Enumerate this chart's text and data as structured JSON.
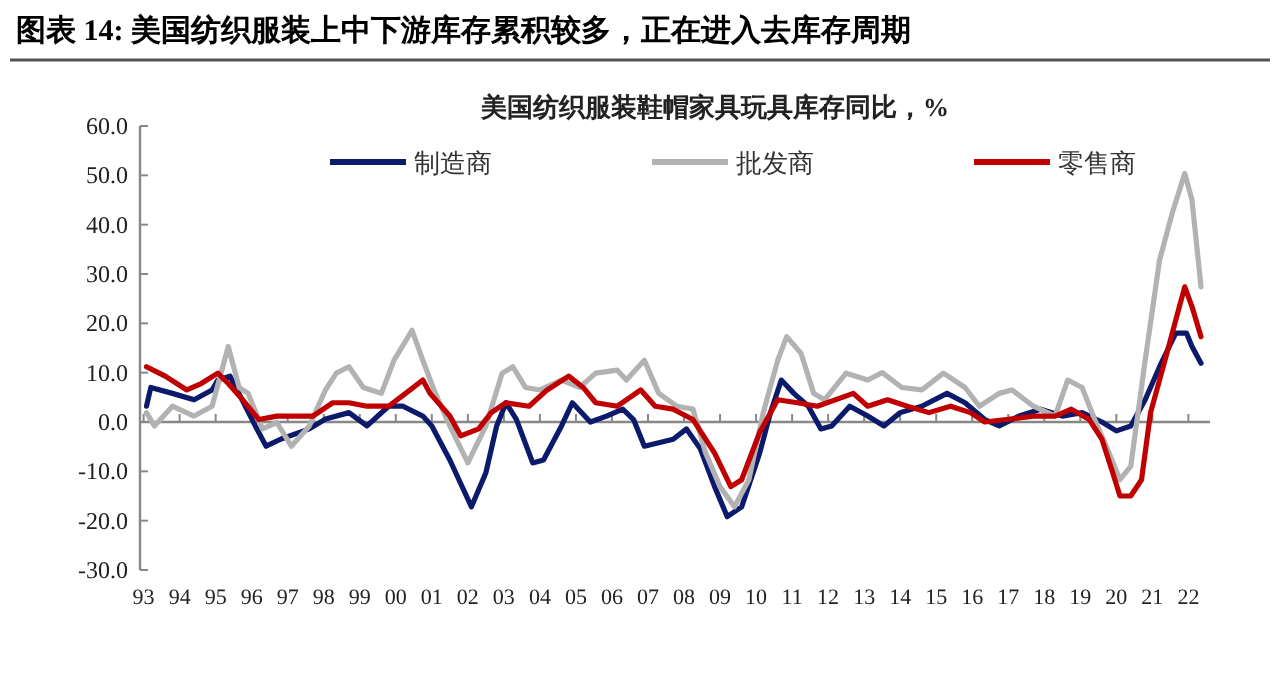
{
  "chart_data": {
    "type": "line",
    "title": "图表 14:  美国纺织服装上中下游库存累积较多，正在进入去库存周期",
    "subtitle": "美国纺织服装鞋帽家具玩具库存同比，%",
    "xlim": [
      1992.9,
      2022.6
    ],
    "ylim": [
      -30,
      60
    ],
    "xticks": [
      {
        "value": 1993,
        "label": "93"
      },
      {
        "value": 1994,
        "label": "94"
      },
      {
        "value": 1995,
        "label": "95"
      },
      {
        "value": 1996,
        "label": "96"
      },
      {
        "value": 1997,
        "label": "97"
      },
      {
        "value": 1998,
        "label": "98"
      },
      {
        "value": 1999,
        "label": "99"
      },
      {
        "value": 2000,
        "label": "00"
      },
      {
        "value": 2001,
        "label": "01"
      },
      {
        "value": 2002,
        "label": "02"
      },
      {
        "value": 2003,
        "label": "03"
      },
      {
        "value": 2004,
        "label": "04"
      },
      {
        "value": 2005,
        "label": "05"
      },
      {
        "value": 2006,
        "label": "06"
      },
      {
        "value": 2007,
        "label": "07"
      },
      {
        "value": 2008,
        "label": "08"
      },
      {
        "value": 2009,
        "label": "09"
      },
      {
        "value": 2010,
        "label": "10"
      },
      {
        "value": 2011,
        "label": "11"
      },
      {
        "value": 2012,
        "label": "12"
      },
      {
        "value": 2013,
        "label": "13"
      },
      {
        "value": 2014,
        "label": "14"
      },
      {
        "value": 2015,
        "label": "15"
      },
      {
        "value": 2016,
        "label": "16"
      },
      {
        "value": 2017,
        "label": "17"
      },
      {
        "value": 2018,
        "label": "18"
      },
      {
        "value": 2019,
        "label": "19"
      },
      {
        "value": 2020,
        "label": "20"
      },
      {
        "value": 2021,
        "label": "21"
      },
      {
        "value": 2022,
        "label": "22"
      }
    ],
    "yticks": [
      {
        "value": -30,
        "label": "-30.0"
      },
      {
        "value": -20,
        "label": "-20.0"
      },
      {
        "value": -10,
        "label": "-10.0"
      },
      {
        "value": 0,
        "label": "0.0"
      },
      {
        "value": 10,
        "label": "10.0"
      },
      {
        "value": 20,
        "label": "20.0"
      },
      {
        "value": 30,
        "label": "30.0"
      },
      {
        "value": 40,
        "label": "40.0"
      },
      {
        "value": 50,
        "label": "50.0"
      },
      {
        "value": 60,
        "label": "60.0"
      }
    ],
    "legend": "top",
    "marker": "none",
    "line_style": "solid",
    "series": [
      {
        "name": "制造商",
        "color": "#0c1a6b",
        "x": [
          1993.08,
          1993.2,
          1993.8,
          1994.4,
          1994.9,
          1995.06,
          1995.4,
          1996.1,
          1996.4,
          1996.8,
          1997.6,
          1998.05,
          1998.7,
          1999.2,
          1999.8,
          2000.2,
          2000.75,
          2001.0,
          2001.5,
          2002.1,
          2002.5,
          2002.8,
          2003.06,
          2003.35,
          2003.8,
          2004.1,
          2004.6,
          2004.9,
          2005.4,
          2005.85,
          2006.3,
          2006.6,
          2006.9,
          2007.3,
          2007.7,
          2008.07,
          2008.45,
          2008.85,
          2009.2,
          2009.6,
          2010.1,
          2010.4,
          2010.7,
          2011.05,
          2011.45,
          2011.8,
          2012.1,
          2012.6,
          2013.1,
          2013.55,
          2014.0,
          2014.6,
          2015.3,
          2015.8,
          2016.35,
          2016.75,
          2017.3,
          2017.9,
          2018.5,
          2019.05,
          2019.6,
          2020.0,
          2020.4,
          2020.8,
          2021.2,
          2021.65,
          2021.95,
          2022.1,
          2022.35
        ],
        "values": [
          3.2,
          7,
          5.8,
          4.5,
          6.5,
          8.5,
          9.3,
          -0.8,
          -4.9,
          -3.5,
          -1.4,
          0.6,
          1.9,
          -0.8,
          3.2,
          3.2,
          1.2,
          -0.8,
          -7.7,
          -17.2,
          -10.3,
          -0.8,
          3.9,
          0.5,
          -8.3,
          -7.7,
          -0.8,
          3.9,
          0,
          1.2,
          2.6,
          0.5,
          -4.9,
          -4.2,
          -3.5,
          -1.4,
          -5.4,
          -13.1,
          -19.2,
          -17.2,
          -6.3,
          1.9,
          8.5,
          5.8,
          3.2,
          -1.4,
          -0.8,
          3.2,
          1.2,
          -0.8,
          1.9,
          3.2,
          5.8,
          3.9,
          0.5,
          -0.8,
          1.2,
          2.6,
          1.2,
          1.9,
          0,
          -1.8,
          -0.8,
          4.5,
          11.2,
          18,
          18,
          15.3,
          11.9
        ]
      },
      {
        "name": "批发商",
        "color": "#b2b2b2",
        "x": [
          1993.08,
          1993.3,
          1993.8,
          1994.4,
          1994.9,
          1995.35,
          1995.65,
          1995.9,
          1996.3,
          1996.7,
          1997.1,
          1997.6,
          1998.05,
          1998.35,
          1998.7,
          1999.1,
          1999.6,
          1999.95,
          2000.45,
          2000.75,
          2001.1,
          2001.5,
          2002.0,
          2002.5,
          2002.95,
          2003.25,
          2003.6,
          2004.0,
          2004.6,
          2005.1,
          2005.55,
          2006.15,
          2006.4,
          2006.9,
          2007.3,
          2007.8,
          2008.25,
          2008.6,
          2009.0,
          2009.4,
          2009.8,
          2010.2,
          2010.6,
          2010.85,
          2011.25,
          2011.6,
          2011.9,
          2012.5,
          2013.1,
          2013.5,
          2014.05,
          2014.6,
          2015.2,
          2015.8,
          2016.2,
          2016.75,
          2017.1,
          2017.7,
          2018.3,
          2018.65,
          2019.05,
          2019.4,
          2019.8,
          2020.1,
          2020.4,
          2020.8,
          2021.2,
          2021.55,
          2021.9,
          2022.1,
          2022.35
        ],
        "values": [
          1.9,
          -0.8,
          3.2,
          1.2,
          3.2,
          15.3,
          7,
          5.8,
          -1.4,
          -0.1,
          -4.9,
          -0.8,
          6.5,
          9.9,
          11.2,
          7,
          5.8,
          12.5,
          18.6,
          12.5,
          5.8,
          -0.8,
          -8.3,
          -0.8,
          9.9,
          11.2,
          7,
          6.5,
          8.5,
          7,
          9.9,
          10.5,
          8.5,
          12.5,
          5.8,
          3.2,
          2.6,
          -6.3,
          -13.1,
          -17.2,
          -11.7,
          1.9,
          12.5,
          17.3,
          13.9,
          5.8,
          4.5,
          9.9,
          8.5,
          10,
          7,
          6.5,
          9.9,
          7,
          3.2,
          5.8,
          6.5,
          3.2,
          1.2,
          8.5,
          7,
          0.5,
          -6.3,
          -11.7,
          -9,
          12.5,
          32.8,
          42.3,
          50.4,
          45,
          27.4
        ]
      },
      {
        "name": "零售商",
        "color": "#c00000",
        "x": [
          1993.08,
          1993.6,
          1994.2,
          1994.6,
          1995.06,
          1995.35,
          1995.75,
          1996.2,
          1996.7,
          1997.3,
          1997.7,
          1998.25,
          1998.7,
          1999.2,
          1999.8,
          2000.4,
          2000.75,
          2000.95,
          2001.5,
          2001.8,
          2002.3,
          2002.65,
          2003.06,
          2003.7,
          2004.2,
          2004.8,
          2005.2,
          2005.55,
          2006.15,
          2006.8,
          2007.2,
          2007.7,
          2008.25,
          2008.85,
          2009.3,
          2009.6,
          2010.1,
          2010.6,
          2011.15,
          2011.7,
          2012.7,
          2013.1,
          2013.65,
          2014.2,
          2014.8,
          2015.4,
          2015.95,
          2016.35,
          2016.95,
          2017.7,
          2018.3,
          2018.75,
          2019.25,
          2019.6,
          2019.9,
          2020.1,
          2020.4,
          2020.7,
          2020.95,
          2021.35,
          2021.75,
          2021.9,
          2022.1,
          2022.35
        ],
        "values": [
          11.2,
          9.3,
          6.5,
          7.8,
          9.9,
          7.8,
          4.5,
          0.5,
          1.2,
          1.2,
          1.2,
          3.9,
          3.9,
          3.2,
          3.2,
          6.5,
          8.5,
          5.8,
          1.2,
          -2.8,
          -1.4,
          1.9,
          3.9,
          3.2,
          6.5,
          9.3,
          7,
          3.9,
          3.2,
          6.5,
          3.2,
          2.6,
          0.5,
          -6.3,
          -13.1,
          -11.7,
          -2.1,
          4.5,
          3.9,
          3.2,
          5.8,
          3.2,
          4.5,
          3.2,
          1.9,
          3.2,
          1.9,
          0,
          0.5,
          1.2,
          1.2,
          2.6,
          0.5,
          -3.5,
          -10.3,
          -15,
          -15,
          -11.7,
          1.9,
          12.5,
          23.4,
          27.4,
          23.4,
          17.3
        ]
      }
    ]
  }
}
